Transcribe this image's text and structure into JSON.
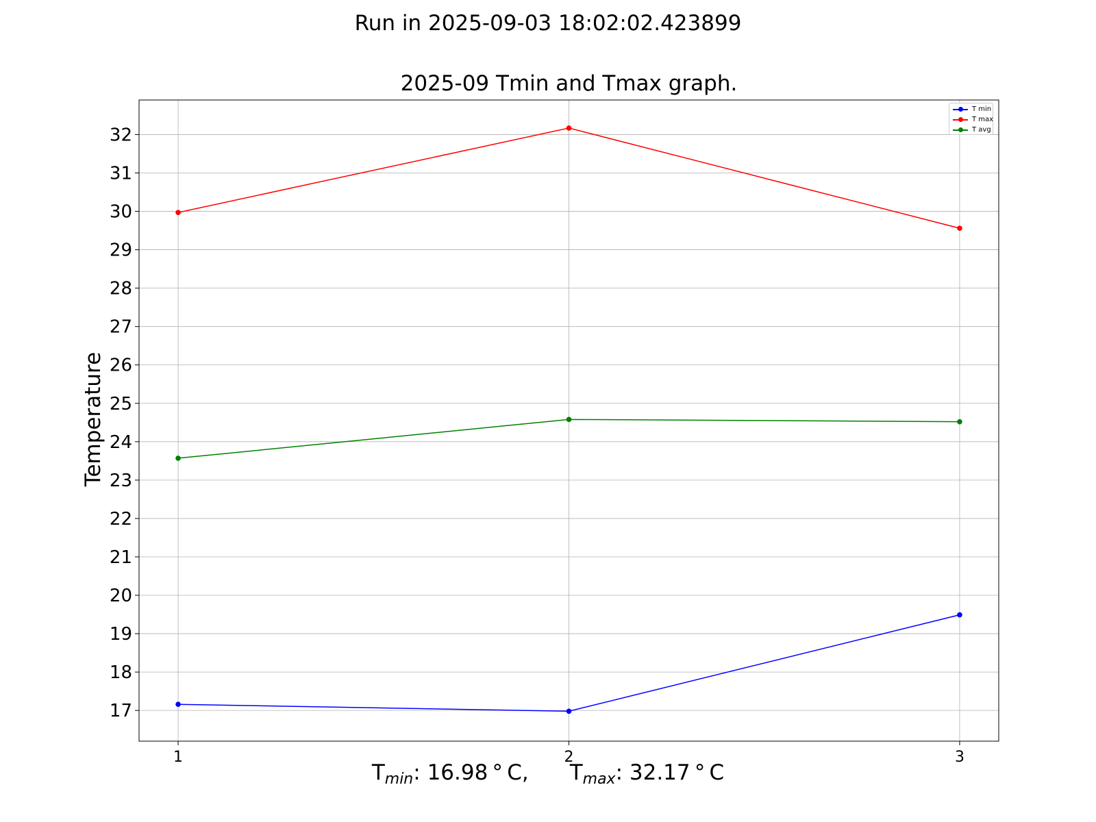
{
  "suptitle": "Run in 2025-09-03 18:02:02.423899",
  "chart_data": {
    "type": "line",
    "title": "2025-09 Tmin and Tmax graph.",
    "ylabel": "Temperature",
    "xlabel": {
      "tmin_prefix": "T",
      "tmin_sub": "min",
      "tmin_value": ": 16.98 ° C,",
      "tmax_prefix": "T",
      "tmax_sub": "max",
      "tmax_value": ": 32.17 ° C"
    },
    "x": [
      1,
      2,
      3
    ],
    "xticks": [
      "1",
      "2",
      "3"
    ],
    "xlim": [
      0.9,
      3.1
    ],
    "ylim": [
      16.2,
      32.9
    ],
    "yticks": [
      17,
      18,
      19,
      20,
      21,
      22,
      23,
      24,
      25,
      26,
      27,
      28,
      29,
      30,
      31,
      32
    ],
    "grid": true,
    "legend_position": "top-right",
    "series": [
      {
        "name": "T min",
        "color": "#0000ff",
        "values": [
          17.16,
          16.98,
          19.49
        ]
      },
      {
        "name": "T max",
        "color": "#ff0000",
        "values": [
          29.97,
          32.17,
          29.56
        ]
      },
      {
        "name": "T avg",
        "color": "#008000",
        "values": [
          23.57,
          24.58,
          24.52
        ]
      }
    ]
  }
}
